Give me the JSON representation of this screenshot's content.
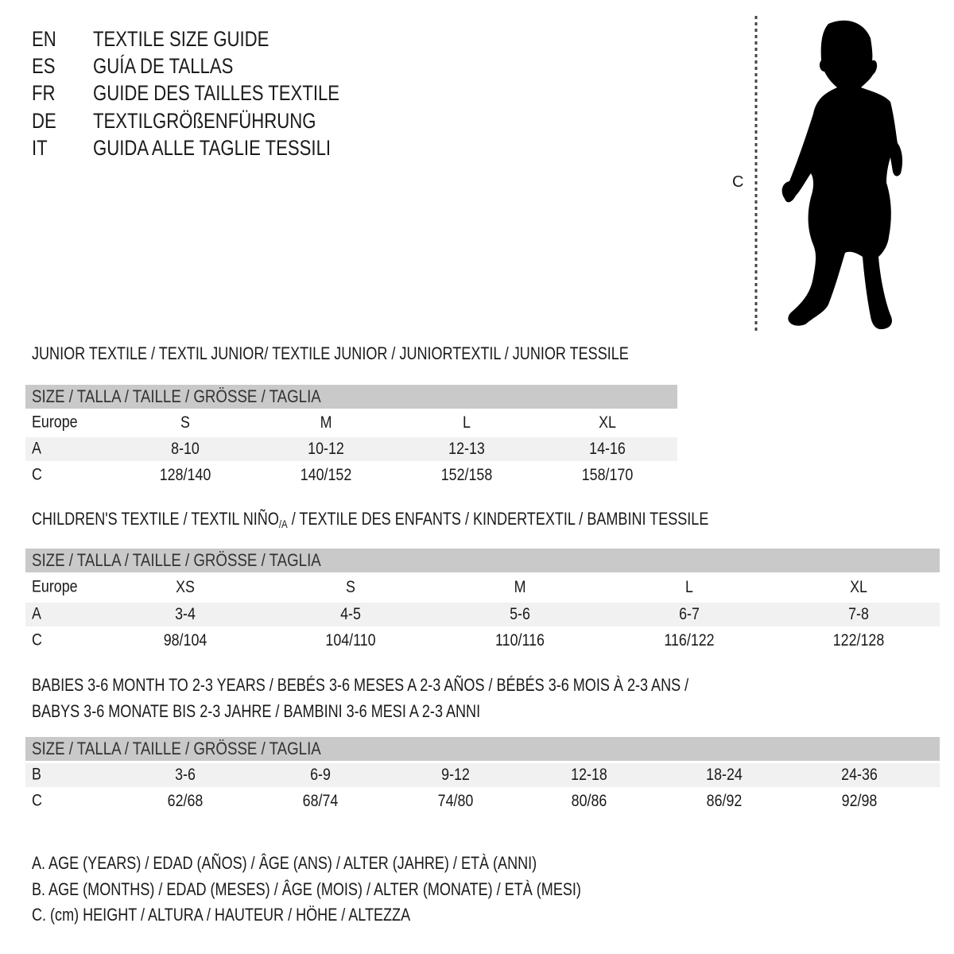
{
  "languages": [
    {
      "code": "EN",
      "title": "TEXTILE SIZE GUIDE"
    },
    {
      "code": "ES",
      "title": "GUÍA DE TALLAS"
    },
    {
      "code": "FR",
      "title": "GUIDE DES TAILLES TEXTILE"
    },
    {
      "code": "DE",
      "title": "TEXTILGRÖßENFÜHRUNG"
    },
    {
      "code": "IT",
      "title": "GUIDA ALLE TAGLIE TESSILI"
    }
  ],
  "figure": {
    "measure_label": "C",
    "icon": "child-silhouette-icon"
  },
  "colors": {
    "header_bg": "#c9c9c9",
    "alt_row_bg": "#f1f1f1",
    "text": "#1a1a1a"
  },
  "sections": [
    {
      "heading": "JUNIOR TEXTILE / TEXTIL JUNIOR/ TEXTILE JUNIOR / JUNIORTEXTIL / JUNIOR TESSILE",
      "table": {
        "header": "SIZE / TALLA / TAILLE / GRÖSSE / TAGLIA",
        "rows": [
          {
            "label": "Europe",
            "values": [
              "S",
              "M",
              "L",
              "XL"
            ]
          },
          {
            "label": "A",
            "values": [
              "8-10",
              "10-12",
              "12-13",
              "14-16"
            ]
          },
          {
            "label": "C",
            "values": [
              "128/140",
              "140/152",
              "152/158",
              "158/170"
            ]
          }
        ]
      }
    },
    {
      "heading_pre": "CHILDREN'S TEXTILE / TEXTIL NIÑO",
      "heading_sub": "/A",
      "heading_post": " / TEXTILE DES ENFANTS / KINDERTEXTIL / BAMBINI TESSILE",
      "table": {
        "header": "SIZE / TALLA / TAILLE / GRÖSSE / TAGLIA",
        "rows": [
          {
            "label": "Europe",
            "values": [
              "XS",
              "S",
              "M",
              "L",
              "XL"
            ]
          },
          {
            "label": "A",
            "values": [
              "3-4",
              "4-5",
              "5-6",
              "6-7",
              "7-8"
            ]
          },
          {
            "label": "C",
            "values": [
              "98/104",
              "104/110",
              "110/116",
              "116/122",
              "122/128"
            ]
          }
        ]
      }
    },
    {
      "heading": "BABIES 3-6 MONTH TO 2-3 YEARS / BEBÉS 3-6 MESES A 2-3 AÑOS / BÉBÉS 3-6 MOIS À 2-3 ANS /",
      "heading2": "BABYS 3-6 MONATE BIS 2-3 JAHRE / BAMBINI 3-6 MESI A 2-3 ANNI",
      "table": {
        "header": "SIZE / TALLA / TAILLE / GRÖSSE / TAGLIA",
        "rows": [
          {
            "label": "B",
            "values": [
              "3-6",
              "6-9",
              "9-12",
              "12-18",
              "18-24",
              "24-36"
            ]
          },
          {
            "label": "C",
            "values": [
              "62/68",
              "68/74",
              "74/80",
              "80/86",
              "86/92",
              "92/98"
            ]
          }
        ]
      }
    }
  ],
  "legend": [
    "A. AGE (YEARS) / EDAD (AÑOS) / ÂGE (ANS) / ALTER (JAHRE) / ETÀ (ANNI)",
    "B. AGE (MONTHS) / EDAD (MESES) / ÂGE (MOIS) / ALTER (MONATE) / ETÀ (MESI)",
    "C. (cm) HEIGHT / ALTURA / HAUTEUR / HÖHE / ALTEZZA"
  ]
}
